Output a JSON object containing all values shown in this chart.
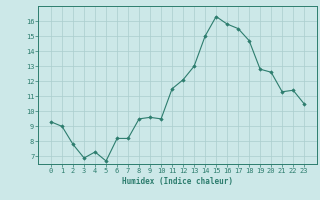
{
  "x": [
    0,
    1,
    2,
    3,
    4,
    5,
    6,
    7,
    8,
    9,
    10,
    11,
    12,
    13,
    14,
    15,
    16,
    17,
    18,
    19,
    20,
    21,
    22,
    23
  ],
  "y": [
    9.3,
    9.0,
    7.8,
    6.9,
    7.3,
    6.7,
    8.2,
    8.2,
    9.5,
    9.6,
    9.5,
    11.5,
    12.1,
    13.0,
    15.0,
    16.3,
    15.8,
    15.5,
    14.7,
    12.8,
    12.6,
    11.3,
    11.4,
    10.5
  ],
  "line_color": "#2d7d6e",
  "marker": "D",
  "marker_size": 1.8,
  "bg_color": "#cce8e8",
  "grid_color": "#aacece",
  "xlabel": "Humidex (Indice chaleur)",
  "ylim": [
    6.5,
    17.0
  ],
  "yticks": [
    7,
    8,
    9,
    10,
    11,
    12,
    13,
    14,
    15,
    16
  ],
  "xticks": [
    0,
    1,
    2,
    3,
    4,
    5,
    6,
    7,
    8,
    9,
    10,
    11,
    12,
    13,
    14,
    15,
    16,
    17,
    18,
    19,
    20,
    21,
    22,
    23
  ],
  "axis_fontsize": 5.5,
  "tick_fontsize": 5.0
}
